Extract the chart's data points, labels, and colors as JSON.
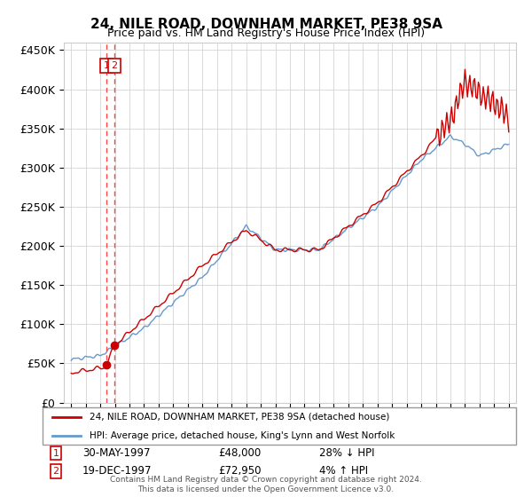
{
  "title": "24, NILE ROAD, DOWNHAM MARKET, PE38 9SA",
  "subtitle": "Price paid vs. HM Land Registry's House Price Index (HPI)",
  "legend_line1": "24, NILE ROAD, DOWNHAM MARKET, PE38 9SA (detached house)",
  "legend_line2": "HPI: Average price, detached house, King's Lynn and West Norfolk",
  "footer": "Contains HM Land Registry data © Crown copyright and database right 2024.\nThis data is licensed under the Open Government Licence v3.0.",
  "table_rows": [
    {
      "num": "1",
      "date": "30-MAY-1997",
      "price": "£48,000",
      "hpi": "28% ↓ HPI"
    },
    {
      "num": "2",
      "date": "19-DEC-1997",
      "price": "£72,950",
      "hpi": "4% ↑ HPI"
    }
  ],
  "purchase_prices": [
    48000,
    72950
  ],
  "ylim": [
    0,
    460000
  ],
  "xlim": [
    1994.5,
    2025.5
  ],
  "yticks": [
    0,
    50000,
    100000,
    150000,
    200000,
    250000,
    300000,
    350000,
    400000,
    450000
  ],
  "background_color": "#ffffff",
  "grid_color": "#cccccc",
  "red_line_color": "#cc0000",
  "blue_line_color": "#6699cc",
  "vline_color": "#ff4444",
  "marker_color": "#cc0000",
  "box_color": "#cc0000"
}
